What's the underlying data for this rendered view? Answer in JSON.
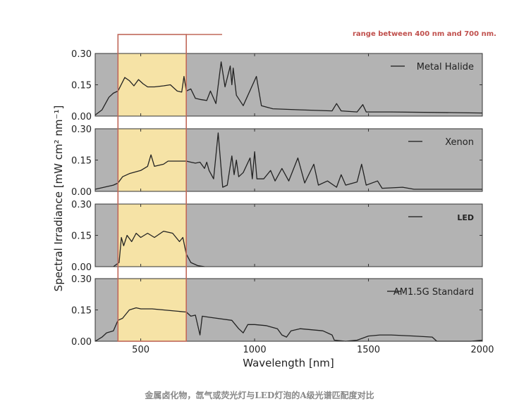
{
  "chart_data": {
    "type": "line",
    "ylabel": "Spectral Irradiance [mW cm² nm⁻¹]",
    "xlabel": "Wavelength [nm]",
    "xlim": [
      300,
      2000
    ],
    "ylim": [
      0,
      0.3
    ],
    "xticks": [
      "500",
      "1000",
      "1500",
      "2000"
    ],
    "xtick_values": [
      500,
      1000,
      1500,
      2000
    ],
    "yticks": [
      "0.00",
      "0.15",
      "0.30"
    ],
    "ytick_values": [
      0,
      0.15,
      0.3
    ],
    "grid": false,
    "legend_placement": "top-right",
    "highlight_band": [
      400,
      700
    ],
    "colors": {
      "panel_bg": "#b3b3b3",
      "band": "#f6e3a6",
      "band_outline": "#c0685a",
      "line": "#222222",
      "annotation": "#c0504d"
    },
    "annotation": "range between 400 nm and 700 nm.",
    "panels": [
      {
        "name": "Metal Halide",
        "x": [
          300,
          330,
          360,
          380,
          400,
          430,
          450,
          470,
          490,
          510,
          530,
          560,
          600,
          630,
          660,
          680,
          690,
          700,
          720,
          740,
          760,
          790,
          806,
          830,
          853,
          870,
          893,
          900,
          906,
          920,
          950,
          1008,
          1030,
          1080,
          1200,
          1340,
          1360,
          1380,
          1450,
          1475,
          1490,
          1600,
          2000
        ],
        "y": [
          0.005,
          0.03,
          0.09,
          0.11,
          0.12,
          0.185,
          0.17,
          0.145,
          0.175,
          0.155,
          0.14,
          0.14,
          0.145,
          0.15,
          0.12,
          0.115,
          0.19,
          0.12,
          0.13,
          0.085,
          0.08,
          0.075,
          0.12,
          0.06,
          0.26,
          0.14,
          0.24,
          0.15,
          0.23,
          0.1,
          0.05,
          0.19,
          0.05,
          0.035,
          0.03,
          0.025,
          0.06,
          0.025,
          0.02,
          0.055,
          0.02,
          0.02,
          0.015
        ]
      },
      {
        "name": "Xenon",
        "x": [
          300,
          380,
          400,
          420,
          450,
          500,
          530,
          545,
          560,
          600,
          620,
          700,
          720,
          740,
          760,
          780,
          790,
          800,
          820,
          840,
          860,
          880,
          900,
          910,
          920,
          930,
          950,
          980,
          990,
          1000,
          1010,
          1040,
          1070,
          1090,
          1120,
          1150,
          1190,
          1220,
          1260,
          1280,
          1320,
          1360,
          1380,
          1400,
          1450,
          1470,
          1490,
          1540,
          1560,
          1650,
          1700,
          2000
        ],
        "y": [
          0.01,
          0.03,
          0.04,
          0.07,
          0.085,
          0.1,
          0.12,
          0.175,
          0.12,
          0.13,
          0.145,
          0.145,
          0.14,
          0.135,
          0.14,
          0.11,
          0.14,
          0.1,
          0.06,
          0.28,
          0.02,
          0.03,
          0.17,
          0.08,
          0.15,
          0.07,
          0.09,
          0.16,
          0.06,
          0.19,
          0.06,
          0.06,
          0.1,
          0.05,
          0.11,
          0.05,
          0.16,
          0.04,
          0.13,
          0.03,
          0.05,
          0.02,
          0.08,
          0.03,
          0.045,
          0.13,
          0.03,
          0.05,
          0.015,
          0.02,
          0.01,
          0.01
        ]
      },
      {
        "name": "LED",
        "x": [
          380,
          405,
          415,
          425,
          440,
          460,
          480,
          500,
          530,
          560,
          600,
          640,
          670,
          685,
          700,
          720,
          750,
          780
        ],
        "y": [
          0,
          0.02,
          0.14,
          0.1,
          0.15,
          0.12,
          0.16,
          0.14,
          0.16,
          0.14,
          0.17,
          0.16,
          0.12,
          0.14,
          0.06,
          0.02,
          0.005,
          0
        ]
      },
      {
        "name": "AM1.5G Standard",
        "x": [
          300,
          330,
          350,
          380,
          400,
          420,
          450,
          480,
          500,
          550,
          600,
          650,
          700,
          720,
          740,
          760,
          770,
          800,
          900,
          930,
          950,
          970,
          1000,
          1050,
          1100,
          1120,
          1140,
          1160,
          1200,
          1250,
          1300,
          1340,
          1350,
          1400,
          1450,
          1500,
          1550,
          1600,
          1700,
          1780,
          1800,
          1950,
          2000
        ],
        "y": [
          0,
          0.02,
          0.04,
          0.05,
          0.1,
          0.11,
          0.15,
          0.16,
          0.155,
          0.155,
          0.15,
          0.145,
          0.14,
          0.12,
          0.125,
          0.03,
          0.12,
          0.115,
          0.1,
          0.06,
          0.04,
          0.08,
          0.08,
          0.075,
          0.06,
          0.03,
          0.02,
          0.05,
          0.06,
          0.055,
          0.05,
          0.03,
          0.005,
          0,
          0.005,
          0.025,
          0.03,
          0.03,
          0.025,
          0.02,
          0,
          0,
          0.005
        ]
      }
    ]
  },
  "caption": "金属卤化物，氙气或荧光灯与LED灯泡的A级光谱匹配度对比"
}
